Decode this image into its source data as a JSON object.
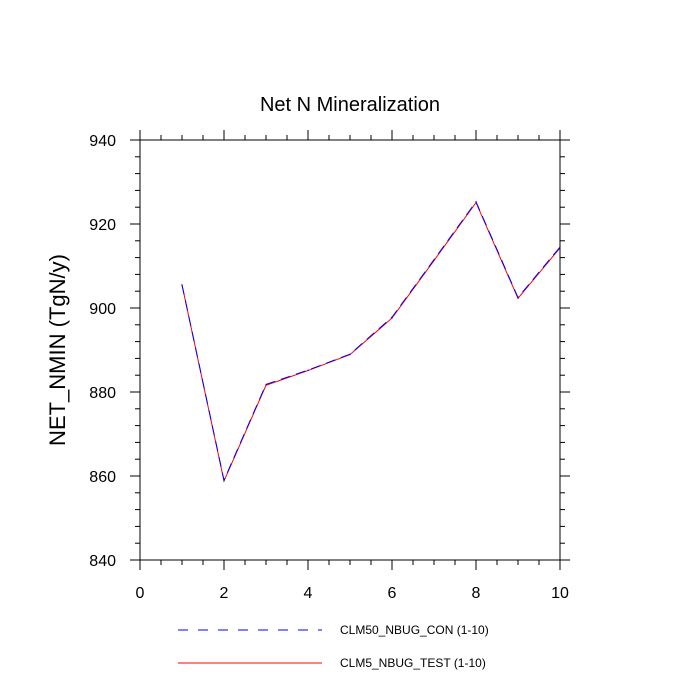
{
  "chart_data": {
    "type": "line",
    "title": "Net N Mineralization",
    "xlabel": "",
    "ylabel": "NET_NMIN  (TgN/y)",
    "xlim": [
      0,
      10
    ],
    "ylim": [
      840,
      940
    ],
    "xticks": [
      0,
      2,
      4,
      6,
      8,
      10
    ],
    "yticks": [
      840,
      860,
      880,
      900,
      920,
      940
    ],
    "x": [
      1,
      2,
      3,
      4,
      5,
      6,
      7,
      8,
      9,
      10
    ],
    "series": [
      {
        "name": "CLM50_NBUG_CON (1-10)",
        "color": "#0000ff",
        "style": "dashed",
        "values": [
          905.5,
          859,
          881.8,
          885.2,
          889,
          897.8,
          911.5,
          925.3,
          902.5,
          914.5
        ]
      },
      {
        "name": "CLM5_NBUG_TEST (1-10)",
        "color": "#ff0000",
        "style": "solid",
        "values": [
          905.5,
          858.8,
          881.6,
          885.1,
          888.9,
          897.6,
          911.3,
          925.1,
          902.3,
          914.3
        ]
      }
    ]
  }
}
